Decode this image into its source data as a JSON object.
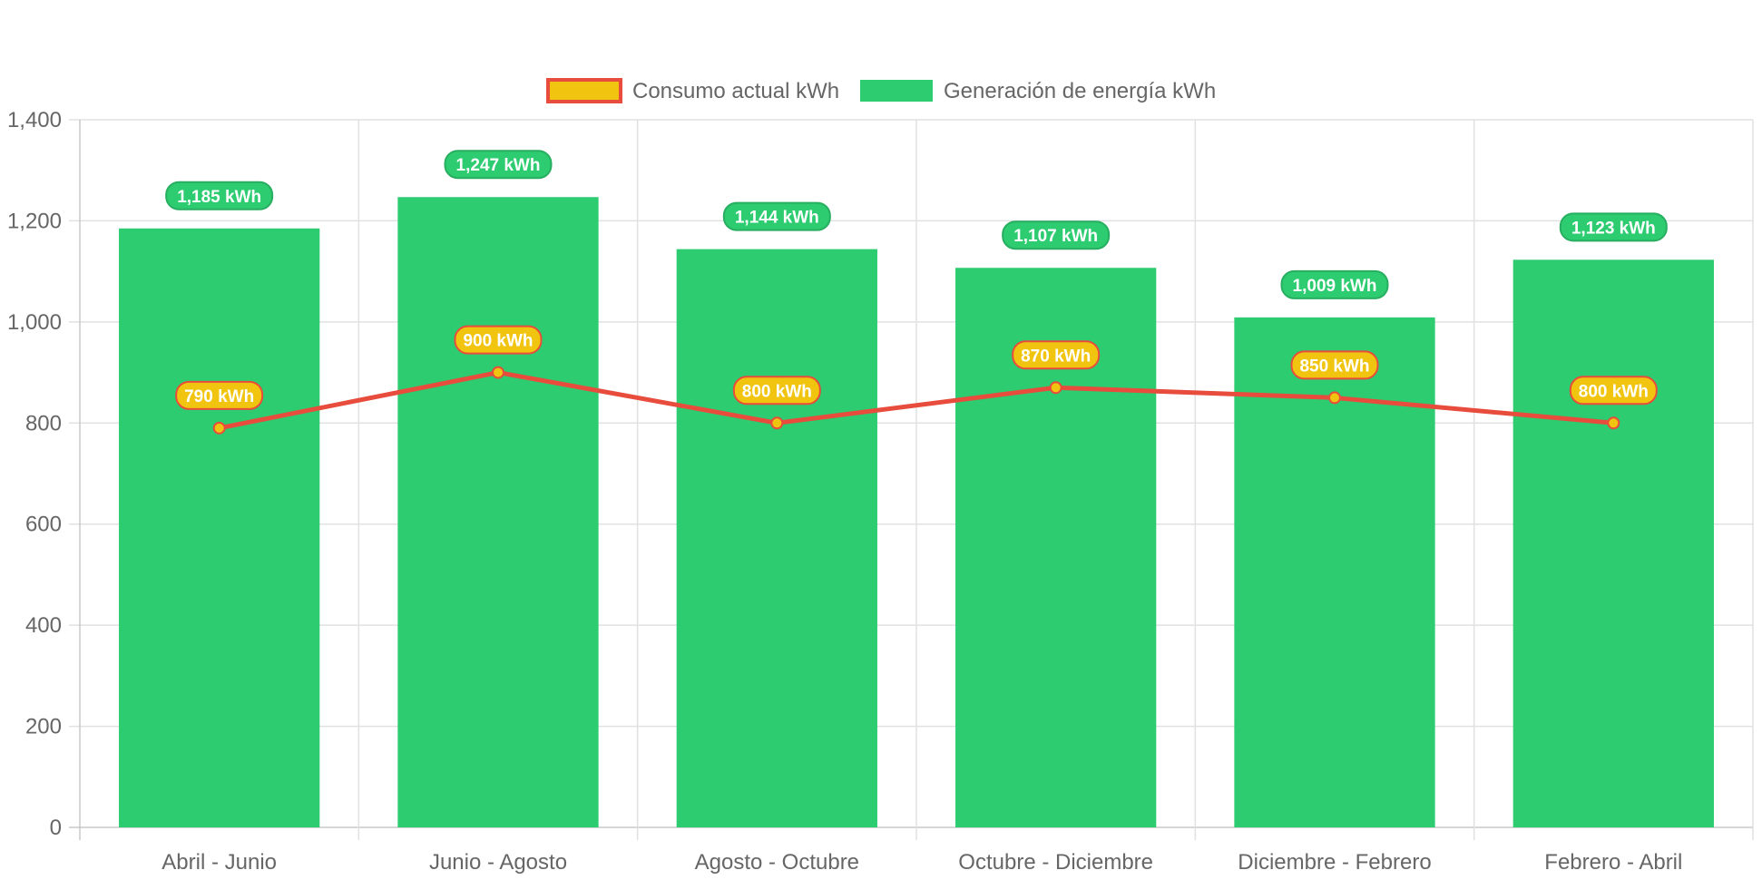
{
  "chart_data": {
    "type": "bar",
    "title": "",
    "xlabel": "",
    "ylabel": "",
    "ylim": [
      0,
      1400
    ],
    "y_ticks": [
      "0",
      "200",
      "400",
      "600",
      "800",
      "1,000",
      "1,200",
      "1,400"
    ],
    "grid": true,
    "legend_position": "top-center",
    "categories": [
      "Abril - Junio",
      "Junio - Agosto",
      "Agosto - Octubre",
      "Octubre - Diciembre",
      "Diciembre - Febrero",
      "Febrero - Abril"
    ],
    "series": [
      {
        "name": "Consumo actual kWh",
        "type": "line",
        "line_color": "#e74c3c",
        "fill_color": "#f1c40f",
        "values": [
          790,
          900,
          800,
          870,
          850,
          800
        ],
        "labels": [
          "790 kWh",
          "900 kWh",
          "800 kWh",
          "870 kWh",
          "850 kWh",
          "800 kWh"
        ]
      },
      {
        "name": "Generación de energía kWh",
        "type": "bar",
        "color": "#2ecc71",
        "label_border": "#27ae60",
        "values": [
          1185,
          1247,
          1144,
          1107,
          1009,
          1123
        ],
        "labels": [
          "1,185 kWh",
          "1,247 kWh",
          "1,144 kWh",
          "1,107 kWh",
          "1,009 kWh",
          "1,123 kWh"
        ]
      }
    ]
  }
}
